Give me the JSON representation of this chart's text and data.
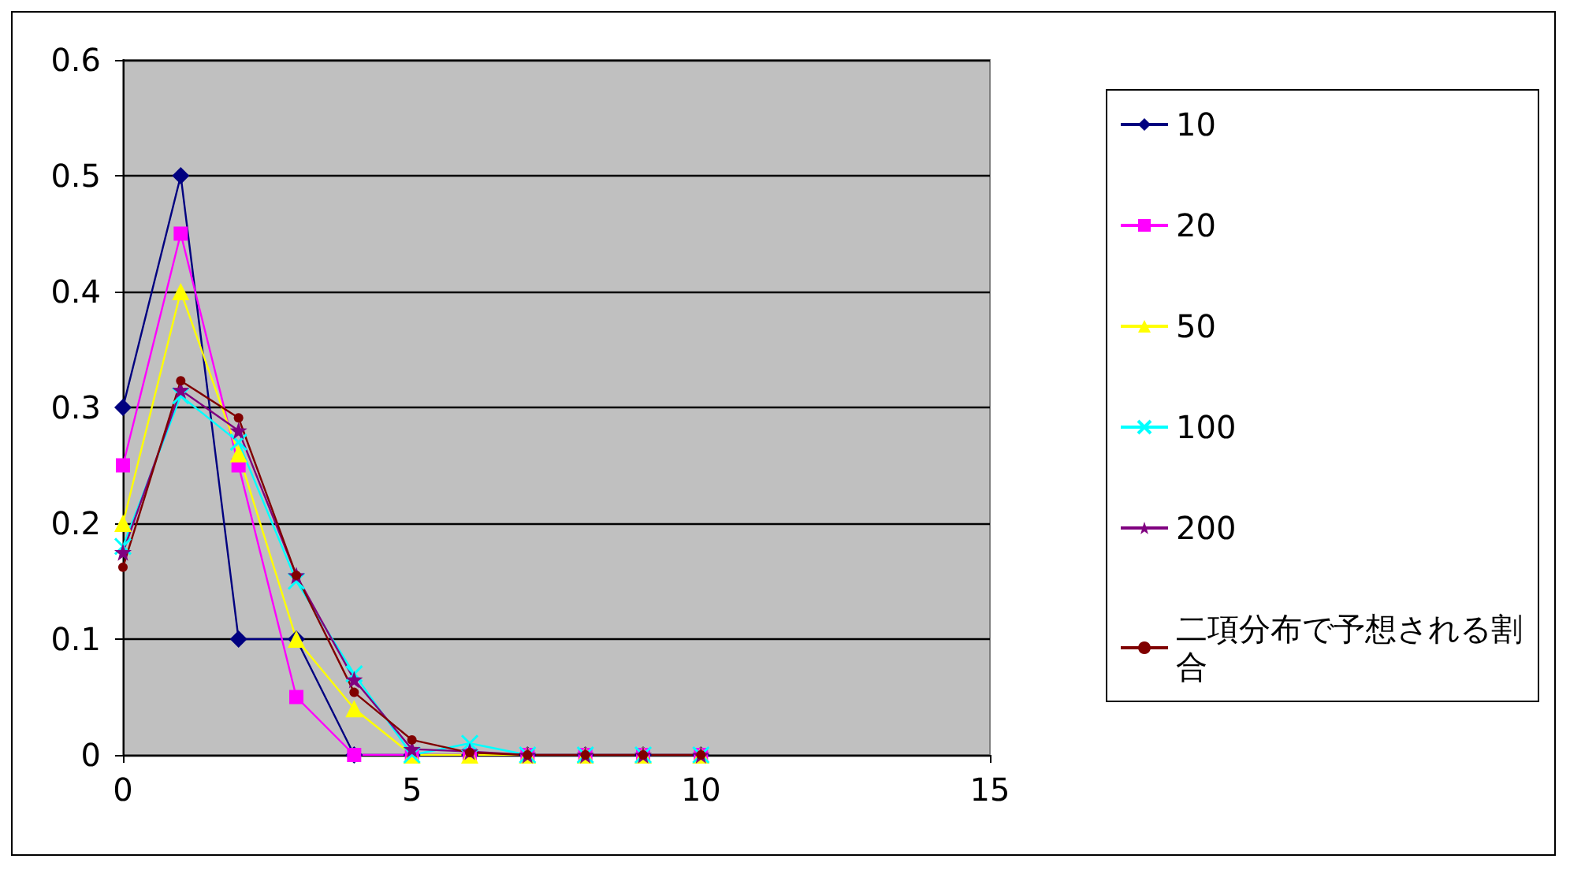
{
  "chart_data": {
    "type": "line",
    "x": [
      0,
      1,
      2,
      3,
      4,
      5,
      6,
      7,
      8,
      9,
      10
    ],
    "xlim": [
      0,
      15
    ],
    "xticks": [
      0,
      5,
      10,
      15
    ],
    "ylim": [
      0,
      0.6
    ],
    "yticks": [
      0,
      0.1,
      0.2,
      0.3,
      0.4,
      0.5,
      0.6
    ],
    "grid": "y",
    "legend": "right",
    "series": [
      {
        "name": "10",
        "color": "#000080",
        "marker": "diamond",
        "values": [
          0.3,
          0.5,
          0.1,
          0.1,
          0,
          0,
          0,
          0,
          0,
          0,
          0
        ]
      },
      {
        "name": "20",
        "color": "#ff00ff",
        "marker": "square",
        "values": [
          0.25,
          0.45,
          0.25,
          0.05,
          0,
          0,
          0,
          0,
          0,
          0,
          0
        ]
      },
      {
        "name": "50",
        "color": "#ffff00",
        "marker": "triangle",
        "values": [
          0.2,
          0.4,
          0.26,
          0.1,
          0.04,
          0,
          0,
          0,
          0,
          0,
          0
        ]
      },
      {
        "name": "100",
        "color": "#00ffff",
        "marker": "cross",
        "values": [
          0.18,
          0.31,
          0.27,
          0.15,
          0.07,
          0,
          0.01,
          0,
          0,
          0,
          0
        ]
      },
      {
        "name": "200",
        "color": "#800080",
        "marker": "star",
        "values": [
          0.175,
          0.315,
          0.28,
          0.155,
          0.065,
          0.005,
          0.003,
          0,
          0,
          0,
          0
        ]
      },
      {
        "name": "二項分布で予想される割合",
        "color": "#800000",
        "marker": "circle",
        "values": [
          0.162,
          0.323,
          0.291,
          0.155,
          0.054,
          0.013,
          0.002,
          0,
          0,
          0,
          0
        ]
      }
    ]
  }
}
